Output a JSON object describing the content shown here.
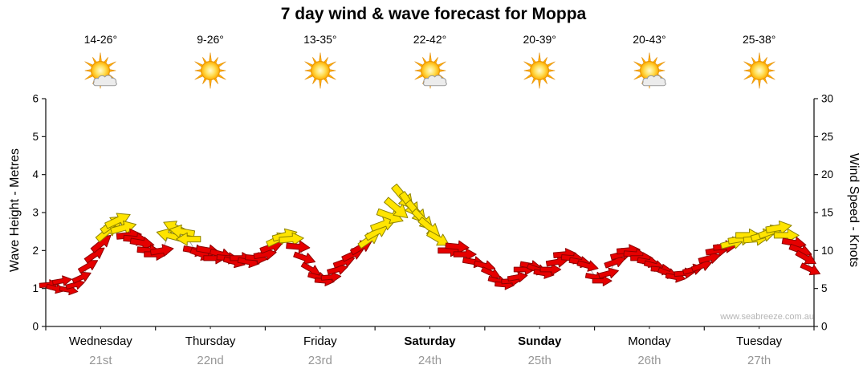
{
  "title": "7 day wind & wave forecast for Moppa",
  "watermark": "www.seabreeze.com.au",
  "axes": {
    "left_label": "Wave Height - Metres",
    "right_label": "Wind Speed - Knots",
    "left_ticks": [
      0,
      1,
      2,
      3,
      4,
      5,
      6
    ],
    "right_ticks": [
      0,
      5,
      10,
      15,
      20,
      25,
      30
    ]
  },
  "days": [
    {
      "name": "Wednesday",
      "date": "21st",
      "temp": "14-26°",
      "icon": "sun-cloud",
      "weekend": false
    },
    {
      "name": "Thursday",
      "date": "22nd",
      "temp": "9-26°",
      "icon": "sun",
      "weekend": false
    },
    {
      "name": "Friday",
      "date": "23rd",
      "temp": "13-35°",
      "icon": "sun",
      "weekend": false
    },
    {
      "name": "Saturday",
      "date": "24th",
      "temp": "22-42°",
      "icon": "sun-cloud",
      "weekend": true
    },
    {
      "name": "Sunday",
      "date": "25th",
      "temp": "20-39°",
      "icon": "sun",
      "weekend": true
    },
    {
      "name": "Monday",
      "date": "26th",
      "temp": "20-43°",
      "icon": "sun-cloud",
      "weekend": false
    },
    {
      "name": "Tuesday",
      "date": "27th",
      "temp": "25-38°",
      "icon": "sun",
      "weekend": false
    }
  ],
  "chart_data": {
    "type": "line",
    "subtype": "wind-arrow-forecast",
    "x_unit": "days (0 = start Wednesday, 7 = end Tuesday)",
    "x_range": [
      0,
      7
    ],
    "left_axis": {
      "label": "Wave Height - Metres",
      "range": [
        0,
        6
      ]
    },
    "right_axis": {
      "label": "Wind Speed - Knots",
      "range": [
        0,
        30
      ]
    },
    "legend": "arrow color: red = stronger/unfavourable wind, yellow = moderate wind; arrow rotation = wind direction; value = wind speed in knots on right axis",
    "colors": {
      "red": "#E60000",
      "red_outline": "#8E0000",
      "yellow": "#FFE400",
      "yellow_outline": "#8F8400",
      "line": "#A8A8A8",
      "axis": "#1A1A1A"
    },
    "points_format": [
      "day_fraction",
      "knots",
      "direction_deg",
      "color r|y"
    ],
    "points": [
      [
        0.03,
        5.5,
        -5,
        "r"
      ],
      [
        0.09,
        5.0,
        15,
        "r"
      ],
      [
        0.15,
        6.0,
        -10,
        "r"
      ],
      [
        0.21,
        4.8,
        10,
        "r"
      ],
      [
        0.27,
        5.5,
        -15,
        "r"
      ],
      [
        0.33,
        6.5,
        -25,
        "r"
      ],
      [
        0.39,
        8.0,
        -30,
        "r"
      ],
      [
        0.45,
        9.5,
        -35,
        "r"
      ],
      [
        0.51,
        11.0,
        -40,
        "r"
      ],
      [
        0.56,
        12.5,
        -40,
        "y"
      ],
      [
        0.61,
        13.5,
        -35,
        "y"
      ],
      [
        0.66,
        14.0,
        -25,
        "y"
      ],
      [
        0.71,
        13.0,
        -15,
        "y"
      ],
      [
        0.76,
        12.0,
        -5,
        "r"
      ],
      [
        0.82,
        11.5,
        5,
        "r"
      ],
      [
        0.88,
        11.0,
        10,
        "r"
      ],
      [
        0.94,
        10.0,
        5,
        "r"
      ],
      [
        1.0,
        9.5,
        0,
        "r"
      ],
      [
        1.06,
        10.0,
        -10,
        "r"
      ],
      [
        1.12,
        12.0,
        195,
        "y"
      ],
      [
        1.18,
        13.0,
        205,
        "y"
      ],
      [
        1.24,
        12.5,
        190,
        "y"
      ],
      [
        1.3,
        11.5,
        180,
        "y"
      ],
      [
        1.36,
        10.0,
        10,
        "r"
      ],
      [
        1.42,
        9.5,
        20,
        "r"
      ],
      [
        1.48,
        10.0,
        10,
        "r"
      ],
      [
        1.54,
        9.0,
        0,
        "r"
      ],
      [
        1.6,
        9.5,
        15,
        "r"
      ],
      [
        1.66,
        9.0,
        5,
        "r"
      ],
      [
        1.72,
        8.5,
        15,
        "r"
      ],
      [
        1.78,
        9.0,
        0,
        "r"
      ],
      [
        1.85,
        8.5,
        10,
        "r"
      ],
      [
        1.92,
        9.0,
        5,
        "r"
      ],
      [
        2.0,
        9.5,
        -10,
        "r"
      ],
      [
        2.06,
        10.5,
        -20,
        "r"
      ],
      [
        2.12,
        11.5,
        -25,
        "y"
      ],
      [
        2.18,
        12.0,
        -15,
        "y"
      ],
      [
        2.24,
        11.5,
        -5,
        "y"
      ],
      [
        2.3,
        10.5,
        5,
        "r"
      ],
      [
        2.36,
        9.0,
        20,
        "r"
      ],
      [
        2.42,
        7.5,
        30,
        "r"
      ],
      [
        2.48,
        6.5,
        15,
        "r"
      ],
      [
        2.54,
        6.0,
        5,
        "r"
      ],
      [
        2.6,
        6.5,
        -5,
        "r"
      ],
      [
        2.66,
        7.5,
        -15,
        "r"
      ],
      [
        2.72,
        8.5,
        -20,
        "r"
      ],
      [
        2.8,
        9.5,
        -25,
        "r"
      ],
      [
        2.88,
        10.5,
        -30,
        "r"
      ],
      [
        2.95,
        11.5,
        -35,
        "y"
      ],
      [
        3.02,
        12.5,
        -30,
        "y"
      ],
      [
        3.08,
        13.5,
        -20,
        "y"
      ],
      [
        3.14,
        14.5,
        20,
        "y"
      ],
      [
        3.2,
        15.5,
        40,
        "y"
      ],
      [
        3.26,
        17.0,
        50,
        "y"
      ],
      [
        3.32,
        16.0,
        55,
        "y"
      ],
      [
        3.38,
        15.0,
        50,
        "y"
      ],
      [
        3.44,
        14.0,
        45,
        "y"
      ],
      [
        3.5,
        13.0,
        40,
        "y"
      ],
      [
        3.58,
        11.5,
        30,
        "y"
      ],
      [
        3.68,
        10.0,
        0,
        "r"
      ],
      [
        3.75,
        10.5,
        5,
        "r"
      ],
      [
        3.82,
        9.5,
        0,
        "r"
      ],
      [
        3.9,
        8.5,
        10,
        "r"
      ],
      [
        4.0,
        8.0,
        15,
        "r"
      ],
      [
        4.06,
        7.0,
        25,
        "r"
      ],
      [
        4.12,
        6.0,
        15,
        "r"
      ],
      [
        4.18,
        5.5,
        5,
        "r"
      ],
      [
        4.24,
        6.0,
        -5,
        "r"
      ],
      [
        4.3,
        6.5,
        -10,
        "r"
      ],
      [
        4.36,
        7.5,
        0,
        "r"
      ],
      [
        4.42,
        8.0,
        10,
        "r"
      ],
      [
        4.48,
        7.5,
        20,
        "r"
      ],
      [
        4.54,
        7.0,
        10,
        "r"
      ],
      [
        4.6,
        7.5,
        0,
        "r"
      ],
      [
        4.66,
        8.5,
        -10,
        "r"
      ],
      [
        4.73,
        9.5,
        -5,
        "r"
      ],
      [
        4.8,
        9.0,
        5,
        "r"
      ],
      [
        4.87,
        8.5,
        10,
        "r"
      ],
      [
        4.94,
        8.0,
        15,
        "r"
      ],
      [
        5.01,
        6.5,
        10,
        "r"
      ],
      [
        5.07,
        6.0,
        0,
        "r"
      ],
      [
        5.13,
        7.0,
        -15,
        "r"
      ],
      [
        5.19,
        8.5,
        -20,
        "r"
      ],
      [
        5.25,
        9.5,
        -15,
        "r"
      ],
      [
        5.31,
        10.0,
        -5,
        "r"
      ],
      [
        5.37,
        9.5,
        5,
        "r"
      ],
      [
        5.43,
        9.0,
        0,
        "r"
      ],
      [
        5.49,
        8.5,
        10,
        "r"
      ],
      [
        5.55,
        8.0,
        15,
        "r"
      ],
      [
        5.61,
        7.5,
        5,
        "r"
      ],
      [
        5.67,
        7.0,
        20,
        "r"
      ],
      [
        5.74,
        6.5,
        10,
        "r"
      ],
      [
        5.82,
        7.0,
        -5,
        "r"
      ],
      [
        5.9,
        7.5,
        -15,
        "r"
      ],
      [
        5.98,
        8.0,
        -20,
        "r"
      ],
      [
        6.05,
        9.0,
        -15,
        "r"
      ],
      [
        6.12,
        10.0,
        -10,
        "r"
      ],
      [
        6.19,
        10.5,
        -5,
        "r"
      ],
      [
        6.26,
        11.0,
        -15,
        "y"
      ],
      [
        6.33,
        11.5,
        -10,
        "y"
      ],
      [
        6.4,
        12.0,
        0,
        "y"
      ],
      [
        6.47,
        11.5,
        -5,
        "y"
      ],
      [
        6.54,
        12.0,
        -15,
        "y"
      ],
      [
        6.61,
        12.5,
        -20,
        "y"
      ],
      [
        6.68,
        13.0,
        -10,
        "y"
      ],
      [
        6.75,
        12.0,
        0,
        "y"
      ],
      [
        6.82,
        11.0,
        10,
        "r"
      ],
      [
        6.88,
        10.0,
        20,
        "r"
      ],
      [
        6.93,
        9.0,
        30,
        "r"
      ],
      [
        6.97,
        7.5,
        25,
        "r"
      ]
    ]
  }
}
